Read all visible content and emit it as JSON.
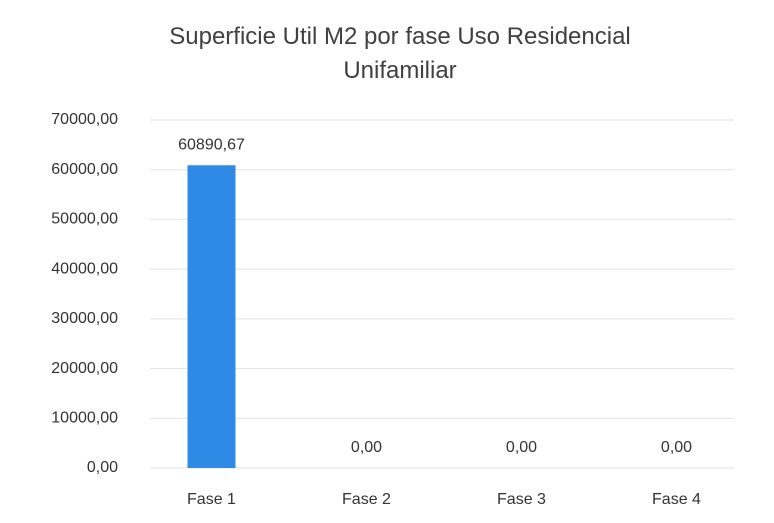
{
  "chart_data": {
    "type": "bar",
    "title": "Superficie Util M2 por fase Uso Residencial Unifamiliar",
    "categories": [
      "Fase 1",
      "Fase 2",
      "Fase 3",
      "Fase 4"
    ],
    "values": [
      60890.67,
      0,
      0,
      0
    ],
    "value_labels": [
      "60890,67",
      "0,00",
      "0,00",
      "0,00"
    ],
    "color": "#2f8ae6",
    "ylim": [
      0,
      70000
    ],
    "yticks": [
      {
        "value": 0,
        "label": "0,00"
      },
      {
        "value": 10000,
        "label": "10000,00"
      },
      {
        "value": 20000,
        "label": "20000,00"
      },
      {
        "value": 30000,
        "label": "30000,00"
      },
      {
        "value": 40000,
        "label": "40000,00"
      },
      {
        "value": 50000,
        "label": "50000,00"
      },
      {
        "value": 60000,
        "label": "60000,00"
      },
      {
        "value": 70000,
        "label": "70000,00"
      }
    ],
    "grid": true
  }
}
